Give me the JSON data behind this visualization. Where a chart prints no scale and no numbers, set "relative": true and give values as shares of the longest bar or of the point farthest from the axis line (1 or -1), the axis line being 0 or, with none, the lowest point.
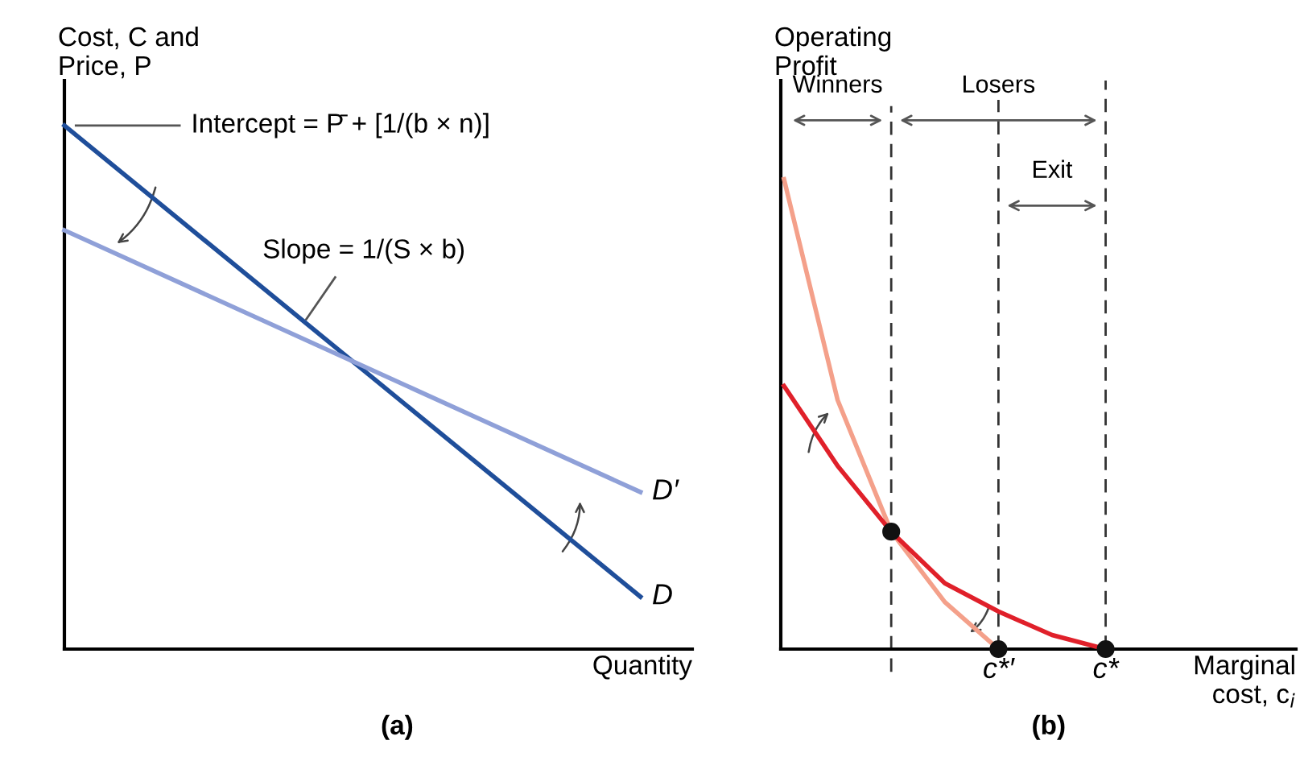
{
  "chart_data": [
    {
      "type": "line",
      "relative": true,
      "ylabel": "Cost, C and\nPrice, P",
      "xlabel": "Quantity",
      "categories": [
        null,
        null
      ],
      "grid": false,
      "legend": false,
      "marker": "none",
      "line_style": "solid",
      "series": [
        {
          "name": "D",
          "color": "#1f4e9a",
          "values": [
            1,
            0.1
          ]
        },
        {
          "name": "D′",
          "color": "#8fa0d8",
          "values": [
            0.8,
            0.3
          ]
        }
      ],
      "annotations": [
        "Intercept = P̄ + [1/(b × n)]",
        "Slope = 1/(S × b)",
        "(a)"
      ]
    },
    {
      "type": "line",
      "relative": true,
      "ylabel": "Operating\nProfit",
      "xlabel": "Marginal\ncost, c$_{i}$",
      "categories": [
        null,
        null,
        null,
        null,
        "c*′",
        null,
        "c*"
      ],
      "grid": "x",
      "legend": false,
      "marker": "none",
      "line_style": "solid",
      "series": [
        {
          "color": "#f4a08a",
          "values": [
            1,
            0.53,
            0.25,
            0.1,
            0,
            null,
            null
          ]
        },
        {
          "color": "#e0202a",
          "values": [
            0.56,
            0.39,
            0.25,
            0.14,
            0.08,
            0.03,
            0
          ]
        },
        {
          "type": "scatter",
          "color": "#111111",
          "marker": "circle",
          "values": [
            null,
            null,
            0.25,
            null,
            0,
            null,
            0
          ]
        }
      ],
      "annotations": [
        "(b)",
        "Winners",
        "Losers",
        "Exit"
      ]
    }
  ]
}
